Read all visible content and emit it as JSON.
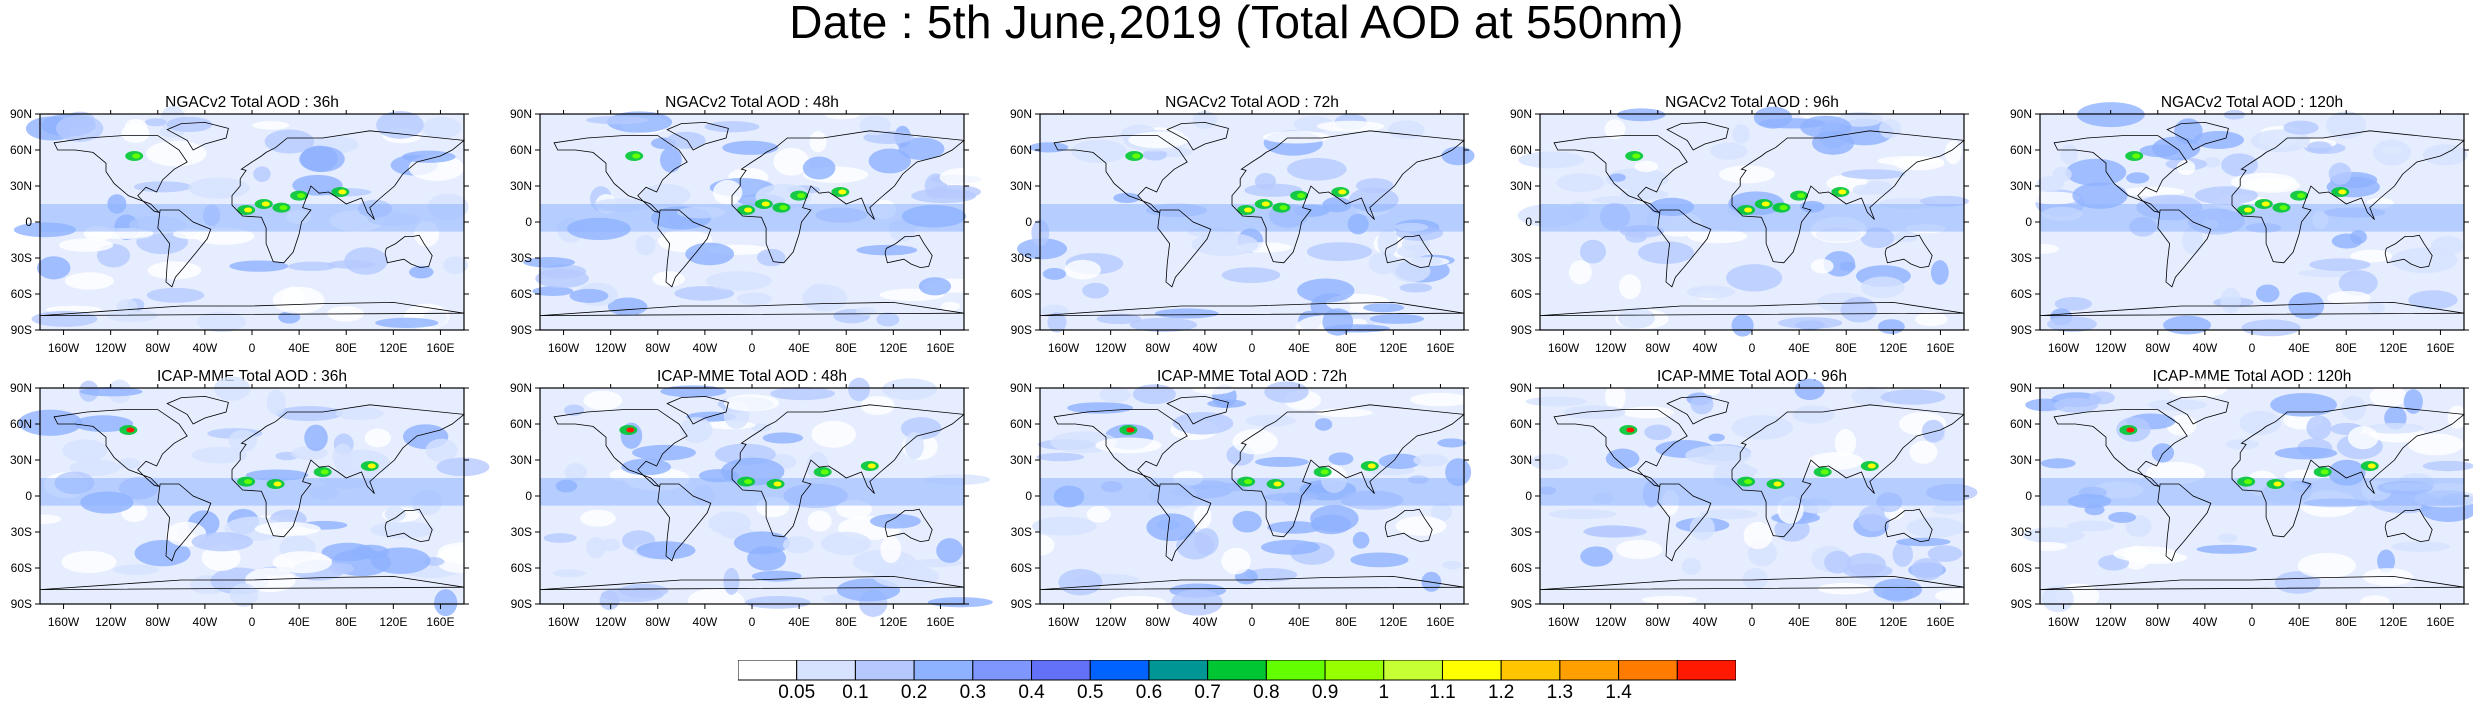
{
  "title": "Date : 5th June,2019 (Total AOD at 550nm)",
  "panels": [
    {
      "title": "NGACv2 Total AOD : 36h",
      "model": "NGACv2",
      "lead": "36h"
    },
    {
      "title": "NGACv2 Total AOD : 48h",
      "model": "NGACv2",
      "lead": "48h"
    },
    {
      "title": "NGACv2 Total AOD : 72h",
      "model": "NGACv2",
      "lead": "72h"
    },
    {
      "title": "NGACv2 Total AOD : 96h",
      "model": "NGACv2",
      "lead": "96h"
    },
    {
      "title": "NGACv2 Total AOD : 120h",
      "model": "NGACv2",
      "lead": "120h"
    },
    {
      "title": "ICAP-MME Total AOD : 36h",
      "model": "ICAP-MME",
      "lead": "36h"
    },
    {
      "title": "ICAP-MME Total AOD : 48h",
      "model": "ICAP-MME",
      "lead": "48h"
    },
    {
      "title": "ICAP-MME Total AOD : 72h",
      "model": "ICAP-MME",
      "lead": "72h"
    },
    {
      "title": "ICAP-MME Total AOD : 96h",
      "model": "ICAP-MME",
      "lead": "96h"
    },
    {
      "title": "ICAP-MME Total AOD : 120h",
      "model": "ICAP-MME",
      "lead": "120h"
    }
  ],
  "axes": {
    "lat_ticks": [
      "90N",
      "60N",
      "30N",
      "0",
      "30S",
      "60S",
      "90S"
    ],
    "lon_ticks": [
      "160W",
      "120W",
      "80W",
      "40W",
      "0",
      "40E",
      "80E",
      "120E",
      "160E"
    ]
  },
  "colorbar": {
    "labels": [
      "0.05",
      "0.1",
      "0.2",
      "0.3",
      "0.4",
      "0.5",
      "0.6",
      "0.7",
      "0.8",
      "0.9",
      "1",
      "1.1",
      "1.2",
      "1.3",
      "1.4"
    ],
    "colors": [
      "#ffffff",
      "#d6e2ff",
      "#b5c9ff",
      "#8eb2ff",
      "#7f96ff",
      "#6370f8",
      "#0063ff",
      "#009696",
      "#00c633",
      "#63ff00",
      "#96ff00",
      "#c6ff33",
      "#ffff00",
      "#ffc600",
      "#ffa000",
      "#ff7c00",
      "#ff1900"
    ]
  }
}
